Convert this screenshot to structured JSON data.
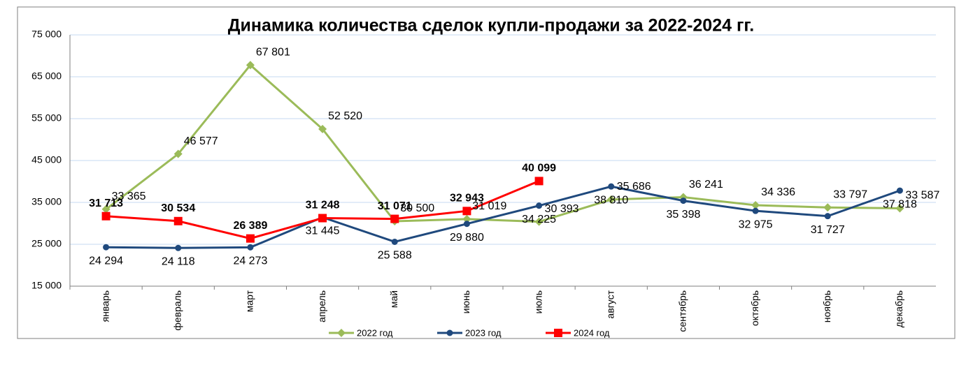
{
  "chart_data": {
    "type": "line",
    "title": "Динамика количества сделок купли-продажи за 2022-2024 гг.",
    "categories": [
      "январь",
      "февраль",
      "март",
      "апрель",
      "май",
      "июнь",
      "июль",
      "август",
      "сентябрь",
      "октябрь",
      "ноябрь",
      "декабрь"
    ],
    "series": [
      {
        "name": "2022 год",
        "color": "#9bbb59",
        "marker": "diamond",
        "values": [
          33365,
          46577,
          67801,
          52520,
          30500,
          31019,
          30393,
          35686,
          36241,
          34336,
          33797,
          33587
        ],
        "value_labels": [
          "33 365",
          "46 577",
          "67 801",
          "52 520",
          "30 500",
          "31 019",
          "30 393",
          "35 686",
          "36 241",
          "34 336",
          "33 797",
          "33 587"
        ]
      },
      {
        "name": "2023 год",
        "color": "#1f497d",
        "marker": "circle",
        "values": [
          24294,
          24118,
          24273,
          31445,
          25588,
          29880,
          34225,
          38810,
          35398,
          32975,
          31727,
          37818
        ],
        "value_labels": [
          "24 294",
          "24 118",
          "24 273",
          "31 445",
          "25 588",
          "29 880",
          "34 225",
          "38 810",
          "35 398",
          "32 975",
          "31 727",
          "37 818"
        ]
      },
      {
        "name": "2024 год",
        "color": "#ff0000",
        "marker": "square",
        "values": [
          31713,
          30534,
          26389,
          31248,
          31071,
          32943,
          40099,
          null,
          null,
          null,
          null,
          null
        ],
        "value_labels": [
          "31 713",
          "30 534",
          "26 389",
          "31 248",
          "31 071",
          "32 943",
          "40 099",
          null,
          null,
          null,
          null,
          null
        ]
      }
    ],
    "ylim": [
      15000,
      75000
    ],
    "yticks": [
      {
        "value": 15000,
        "label": "15 000"
      },
      {
        "value": 25000,
        "label": "25 000"
      },
      {
        "value": 35000,
        "label": "35 000"
      },
      {
        "value": 45000,
        "label": "45 000"
      },
      {
        "value": 55000,
        "label": "55 000"
      },
      {
        "value": 65000,
        "label": "65 000"
      },
      {
        "value": 75000,
        "label": "75 000"
      }
    ],
    "grid": true,
    "legend": "bottom"
  }
}
